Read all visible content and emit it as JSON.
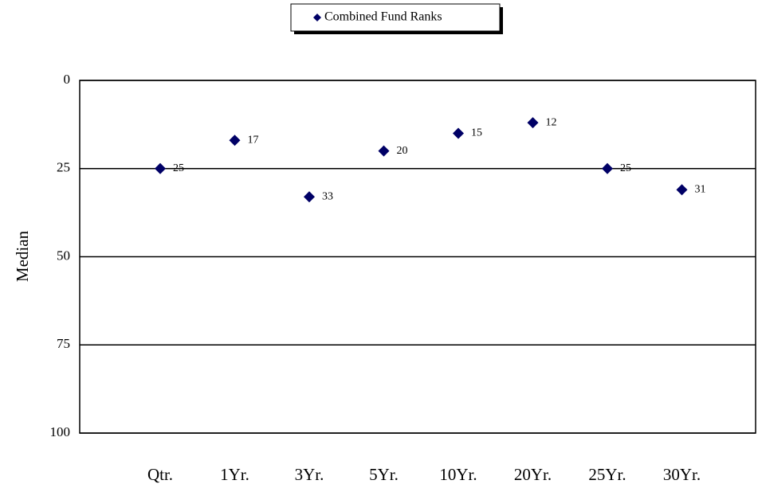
{
  "chart_data": {
    "type": "scatter",
    "y_label": "Median",
    "categories": [
      "Qtr.",
      "1Yr.",
      "3Yr.",
      "5Yr.",
      "10Yr.",
      "20Yr.",
      "25Yr.",
      "30Yr."
    ],
    "series": [
      {
        "name": "Combined Fund Ranks",
        "color": "#000066",
        "values": [
          25,
          17,
          33,
          20,
          15,
          12,
          25,
          31
        ]
      }
    ],
    "ylim": [
      0,
      100
    ],
    "yticks": [
      0,
      25,
      50,
      75,
      100
    ],
    "y_inverted": true,
    "grid": true,
    "data_labels": true,
    "legend": "top"
  }
}
